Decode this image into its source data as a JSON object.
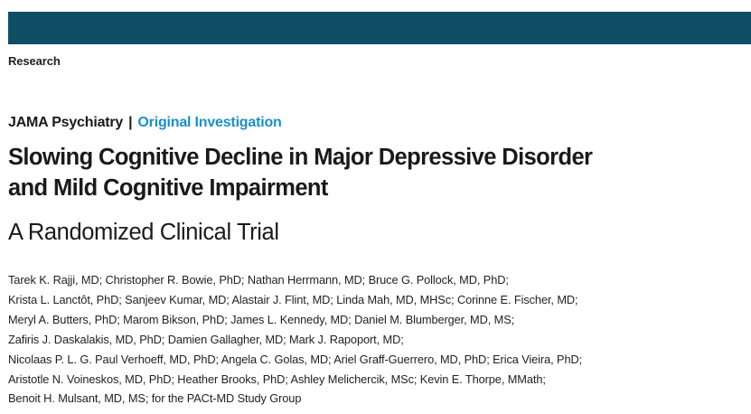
{
  "colors": {
    "header_bar": "#0e4f66",
    "accent": "#1b8fc6",
    "text": "#1a1a1a"
  },
  "section": "Research",
  "journal": {
    "name": "JAMA Psychiatry",
    "separator": "|",
    "article_type": "Original Investigation"
  },
  "title": {
    "line1": "Slowing Cognitive Decline in Major Depressive Disorder",
    "line2": "and Mild Cognitive Impairment",
    "subtitle": "A Randomized Clinical Trial"
  },
  "authors": [
    "Tarek K. Rajji, MD; Christopher R. Bowie, PhD; Nathan Herrmann, MD; Bruce G. Pollock, MD, PhD;",
    "Krista L. Lanctôt, PhD; Sanjeev Kumar, MD; Alastair J. Flint, MD; Linda Mah, MD, MHSc; Corinne E. Fischer, MD;",
    "Meryl A. Butters, PhD; Marom Bikson, PhD; James L. Kennedy, MD; Daniel M. Blumberger, MD, MS;",
    "Zafiris J. Daskalakis, MD, PhD; Damien Gallagher, MD; Mark J. Rapoport, MD;",
    "Nicolaas P. L. G. Paul Verhoeff, MD, PhD; Angela C. Golas, MD; Ariel Graff-Guerrero, MD, PhD; Erica Vieira, PhD;",
    "Aristotle N. Voineskos, MD, PhD; Heather Brooks, PhD; Ashley Melichercik, MSc; Kevin E. Thorpe, MMath;",
    "Benoit H. Mulsant, MD, MS; for the PACt-MD Study Group"
  ]
}
